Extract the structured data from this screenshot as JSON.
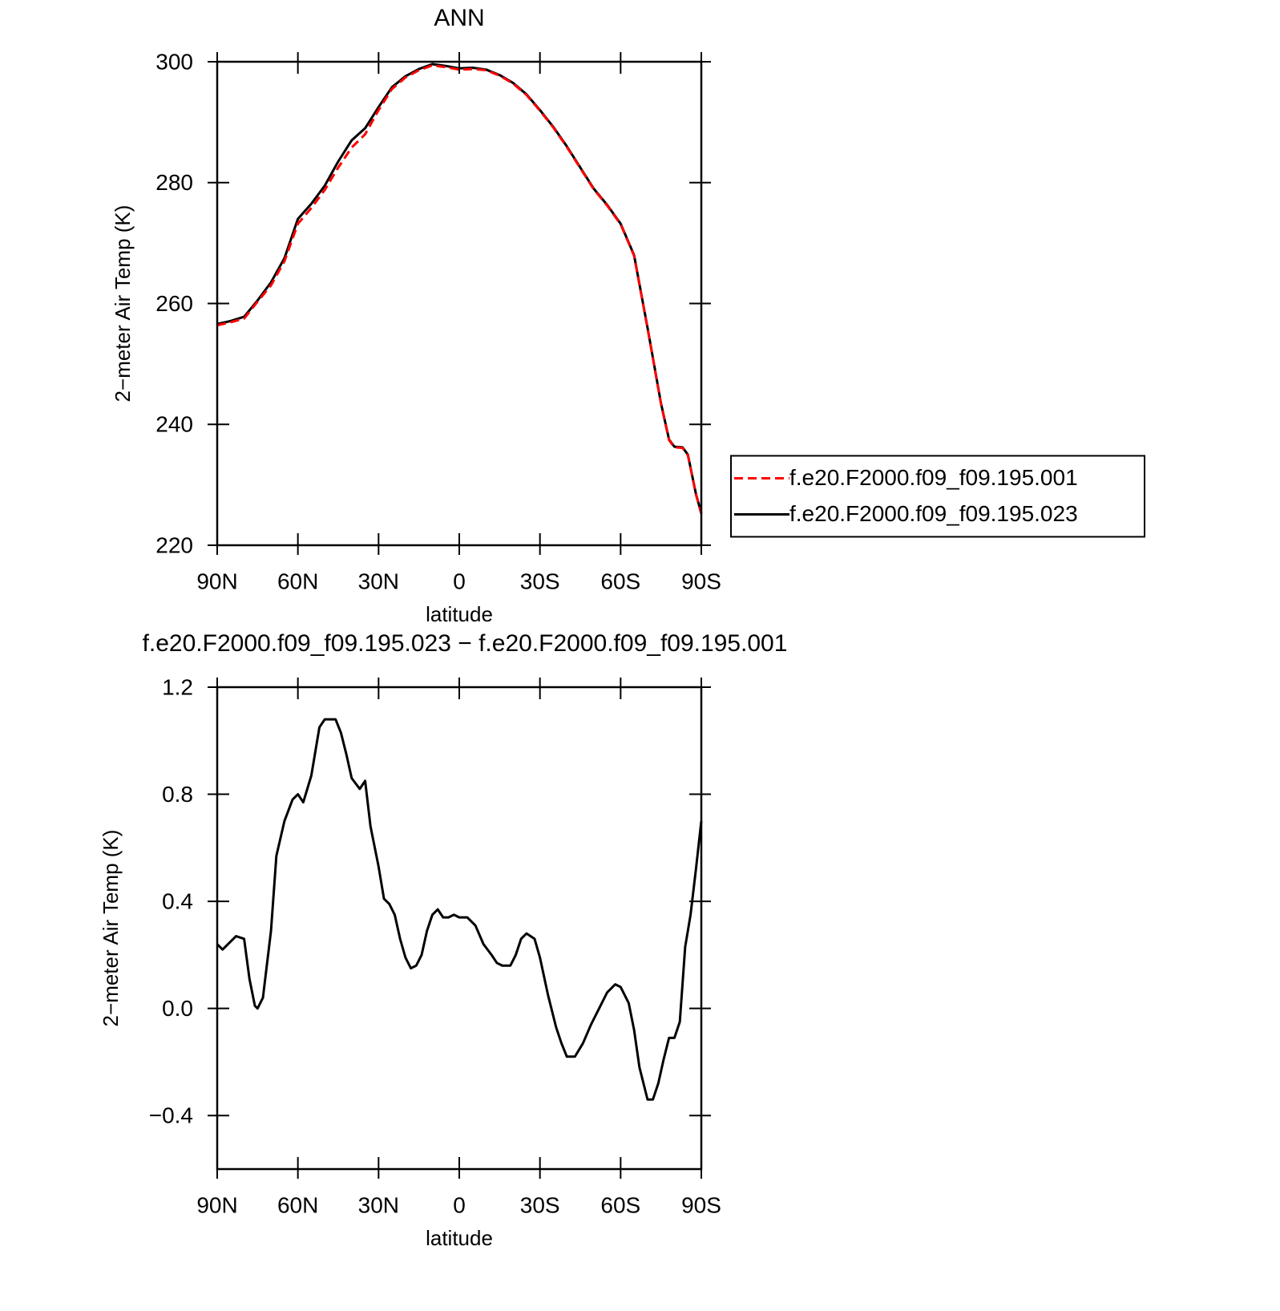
{
  "chart_data": [
    {
      "type": "line",
      "title": "ANN",
      "xlabel": "latitude",
      "ylabel": "2−meter Air Temp (K)",
      "x": [
        90,
        85,
        80,
        75,
        70,
        65,
        60,
        55,
        50,
        45,
        40,
        35,
        30,
        25,
        20,
        15,
        10,
        5,
        0,
        -5,
        -10,
        -15,
        -20,
        -25,
        -30,
        -35,
        -40,
        -45,
        -50,
        -55,
        -60,
        -65,
        -70,
        -75,
        -78,
        -80,
        -83,
        -85,
        -88,
        -90
      ],
      "series": [
        {
          "name": "f.e20.F2000.f09_f09.195.001",
          "color": "#ff0000",
          "dash": true,
          "values": [
            256.4,
            256.9,
            257.5,
            260.3,
            263.0,
            267.0,
            273.2,
            275.8,
            278.8,
            282.5,
            285.8,
            288.0,
            292.0,
            295.5,
            297.4,
            298.6,
            299.4,
            299.1,
            298.7,
            298.8,
            298.6,
            297.7,
            296.4,
            294.5,
            291.9,
            289.1,
            285.9,
            282.4,
            278.9,
            276.2,
            273.1,
            267.9,
            255.9,
            243.4,
            237.4,
            236.2,
            236.1,
            234.9,
            228.4,
            225.2
          ]
        },
        {
          "name": "f.e20.F2000.f09_f09.195.023",
          "color": "#000000",
          "dash": false,
          "values": [
            256.6,
            257.1,
            257.8,
            260.5,
            263.5,
            267.5,
            274.0,
            276.5,
            279.5,
            283.5,
            287.0,
            289.0,
            292.5,
            295.8,
            297.6,
            298.8,
            299.6,
            299.3,
            298.9,
            299.0,
            298.7,
            297.8,
            296.5,
            294.6,
            292.0,
            289.2,
            286.0,
            282.5,
            279.0,
            276.3,
            273.2,
            268.0,
            256.0,
            243.5,
            237.5,
            236.3,
            236.2,
            235.0,
            228.5,
            225.3
          ]
        }
      ],
      "xlim": [
        90,
        -90
      ],
      "xticks": [
        {
          "value": 90,
          "label": "90N"
        },
        {
          "value": 60,
          "label": "60N"
        },
        {
          "value": 30,
          "label": "30N"
        },
        0,
        {
          "value": -30,
          "label": "30S"
        },
        {
          "value": -60,
          "label": "60S"
        },
        {
          "value": -90,
          "label": "90S"
        }
      ],
      "ylim": [
        220,
        300
      ],
      "yticks": [
        220,
        240,
        260,
        280,
        300
      ],
      "legend": "right"
    },
    {
      "type": "line",
      "title": "f.e20.F2000.f09_f09.195.023 − f.e20.F2000.f09_f09.195.001",
      "xlabel": "latitude",
      "ylabel": "2−meter Air Temp (K)",
      "x": [
        90,
        88,
        85,
        83,
        80,
        78,
        76,
        75,
        73,
        70,
        68,
        65,
        62,
        60,
        58,
        55,
        52,
        50,
        48,
        46,
        44,
        42,
        40,
        37,
        35,
        33,
        30,
        28,
        26,
        24,
        22,
        20,
        18,
        16,
        14,
        12,
        10,
        8,
        6,
        4,
        2,
        0,
        -3,
        -6,
        -9,
        -12,
        -14,
        -16,
        -19,
        -21,
        -23,
        -25,
        -28,
        -30,
        -33,
        -36,
        -38,
        -40,
        -43,
        -46,
        -49,
        -52,
        -55,
        -58,
        -60,
        -63,
        -65,
        -67,
        -70,
        -72,
        -74,
        -76,
        -78,
        -80,
        -82,
        -84,
        -86,
        -88,
        -90
      ],
      "values": [
        0.24,
        0.22,
        0.25,
        0.27,
        0.26,
        0.11,
        0.01,
        0.0,
        0.04,
        0.29,
        0.57,
        0.7,
        0.78,
        0.8,
        0.77,
        0.87,
        1.05,
        1.08,
        1.08,
        1.08,
        1.03,
        0.95,
        0.86,
        0.82,
        0.85,
        0.68,
        0.53,
        0.41,
        0.39,
        0.35,
        0.26,
        0.19,
        0.15,
        0.16,
        0.2,
        0.29,
        0.35,
        0.37,
        0.34,
        0.34,
        0.35,
        0.34,
        0.34,
        0.31,
        0.24,
        0.2,
        0.17,
        0.16,
        0.16,
        0.2,
        0.26,
        0.28,
        0.26,
        0.19,
        0.05,
        -0.07,
        -0.13,
        -0.18,
        -0.18,
        -0.13,
        -0.06,
        0.0,
        0.06,
        0.09,
        0.08,
        0.02,
        -0.08,
        -0.22,
        -0.34,
        -0.34,
        -0.28,
        -0.19,
        -0.11,
        -0.11,
        -0.05,
        0.23,
        0.35,
        0.52,
        0.7
      ],
      "color": "#000000",
      "xlim": [
        90,
        -90
      ],
      "xticks": [
        {
          "value": 90,
          "label": "90N"
        },
        {
          "value": 60,
          "label": "60N"
        },
        {
          "value": 30,
          "label": "30N"
        },
        0,
        {
          "value": -30,
          "label": "30S"
        },
        {
          "value": -60,
          "label": "60S"
        },
        {
          "value": -90,
          "label": "90S"
        }
      ],
      "ylim": [
        -0.6,
        1.2
      ],
      "yticks": [
        {
          "value": -0.4,
          "label": "−0.4"
        },
        {
          "value": 0.0,
          "label": "0.0"
        },
        0.4,
        0.8,
        1.2
      ]
    }
  ]
}
